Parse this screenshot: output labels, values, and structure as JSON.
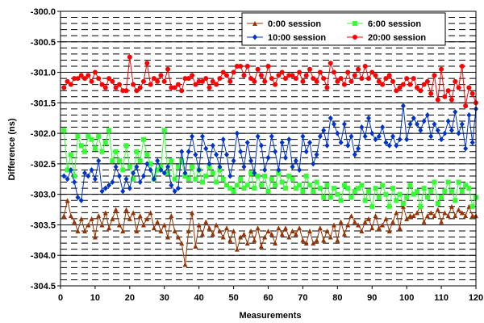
{
  "chart_data": {
    "type": "line",
    "title": "",
    "xlabel": "Measurements",
    "ylabel": "Difference (ns)",
    "xlim": [
      0,
      120
    ],
    "ylim": [
      -304.5,
      -300.0
    ],
    "x_ticks": [
      0,
      10,
      20,
      30,
      40,
      50,
      60,
      70,
      80,
      90,
      100,
      110,
      120
    ],
    "y_ticks": [
      -300.0,
      -300.5,
      -301.0,
      -301.5,
      -302.0,
      -302.5,
      -303.0,
      -303.5,
      -304.0,
      -304.5
    ],
    "y_tick_labels": [
      "-300.0",
      "-300.5",
      "-301.0",
      "-301.5",
      "-302.0",
      "-302.5",
      "-303.0",
      "-303.5",
      "-304.0",
      "-304.5"
    ],
    "grid": "dashed horizontal",
    "legend_placement": "top-right",
    "series": [
      {
        "name": "0:00 session",
        "color": "#993300",
        "marker": "triangle",
        "x_start": 1,
        "values": [
          -303.35,
          -303.1,
          -303.35,
          -303.45,
          -303.6,
          -303.4,
          -303.6,
          -303.5,
          -303.4,
          -303.7,
          -303.35,
          -303.5,
          -303.3,
          -303.55,
          -303.4,
          -303.25,
          -303.5,
          -303.6,
          -303.25,
          -303.4,
          -303.3,
          -303.6,
          -303.35,
          -303.5,
          -303.4,
          -303.3,
          -303.55,
          -303.45,
          -303.6,
          -303.5,
          -303.7,
          -303.35,
          -303.6,
          -303.7,
          -303.8,
          -304.15,
          -303.6,
          -303.3,
          -303.85,
          -303.5,
          -303.65,
          -303.45,
          -303.55,
          -303.65,
          -303.5,
          -303.6,
          -303.7,
          -303.55,
          -303.75,
          -303.6,
          -303.9,
          -303.7,
          -303.65,
          -303.8,
          -303.6,
          -303.75,
          -303.55,
          -303.85,
          -303.7,
          -303.6,
          -303.65,
          -303.8,
          -303.55,
          -303.65,
          -303.55,
          -303.7,
          -303.6,
          -303.65,
          -303.55,
          -303.75,
          -303.8,
          -303.6,
          -303.8,
          -303.75,
          -303.55,
          -303.75,
          -303.6,
          -303.7,
          -303.5,
          -303.75,
          -303.45,
          -303.65,
          -303.5,
          -303.35,
          -303.45,
          -303.5,
          -303.6,
          -303.45,
          -303.4,
          -303.55,
          -303.35,
          -303.55,
          -303.5,
          -303.4,
          -303.6,
          -303.45,
          -303.3,
          -303.55,
          -303.2,
          -303.4,
          -303.35,
          -303.35,
          -303.3,
          -303.2,
          -303.45,
          -303.35,
          -303.3,
          -303.35,
          -303.25,
          -303.45,
          -303.3,
          -303.35,
          -303.2,
          -303.35,
          -303.25,
          -303.3,
          -303.35,
          -303.2,
          -303.35,
          -303.35
        ]
      },
      {
        "name": "6:00 session",
        "color": "#33ff33",
        "marker": "square",
        "x_start": 1,
        "values": [
          -301.95,
          -302.6,
          -302.35,
          -302.7,
          -302.05,
          -302.2,
          -302.3,
          -302.05,
          -302.1,
          -302.25,
          -302.05,
          -302.3,
          -302.15,
          -301.95,
          -302.45,
          -302.3,
          -302.45,
          -302.6,
          -302.2,
          -302.55,
          -302.75,
          -302.3,
          -302.45,
          -302.1,
          -302.35,
          -302.5,
          -302.75,
          -302.6,
          -302.55,
          -301.95,
          -302.65,
          -302.45,
          -302.75,
          -302.55,
          -302.45,
          -302.7,
          -302.75,
          -302.55,
          -302.75,
          -302.6,
          -302.8,
          -302.7,
          -302.55,
          -302.65,
          -302.8,
          -302.6,
          -302.75,
          -302.85,
          -302.9,
          -302.95,
          -302.85,
          -302.75,
          -302.9,
          -302.85,
          -302.65,
          -302.9,
          -302.7,
          -302.85,
          -302.7,
          -302.95,
          -302.75,
          -302.85,
          -302.65,
          -302.8,
          -302.9,
          -302.7,
          -302.75,
          -302.9,
          -302.85,
          -302.95,
          -302.7,
          -302.85,
          -302.95,
          -302.8,
          -302.9,
          -303.05,
          -302.85,
          -303.05,
          -302.9,
          -303.0,
          -303.1,
          -302.85,
          -302.9,
          -303.05,
          -302.95,
          -302.9,
          -302.85,
          -303.1,
          -302.95,
          -303.2,
          -302.9,
          -303.05,
          -302.85,
          -303.0,
          -303.2,
          -302.9,
          -303.1,
          -303.0,
          -303.15,
          -303.05,
          -302.85,
          -303.0,
          -302.95,
          -303.2,
          -302.9,
          -303.05,
          -302.95,
          -302.8,
          -303.15,
          -303.05,
          -302.95,
          -302.8,
          -302.95,
          -303.1,
          -302.8,
          -302.95,
          -302.85,
          -302.9,
          -303.2,
          -303.05
        ]
      },
      {
        "name": "10:00 session",
        "color": "#0033cc",
        "marker": "diamond",
        "x_start": 1,
        "values": [
          -302.7,
          -302.75,
          -302.6,
          -302.8,
          -303.05,
          -303.1,
          -302.65,
          -302.7,
          -302.6,
          -302.75,
          -302.45,
          -302.95,
          -302.9,
          -302.85,
          -302.8,
          -302.55,
          -302.7,
          -302.95,
          -302.75,
          -302.9,
          -302.65,
          -302.55,
          -302.8,
          -302.7,
          -302.5,
          -302.6,
          -302.75,
          -302.45,
          -302.6,
          -302.65,
          -302.55,
          -302.85,
          -302.95,
          -302.9,
          -302.3,
          -302.65,
          -302.3,
          -302.05,
          -302.35,
          -302.6,
          -302.05,
          -302.25,
          -302.5,
          -302.2,
          -302.35,
          -302.55,
          -302.1,
          -302.35,
          -302.7,
          -302.45,
          -302.0,
          -302.3,
          -302.55,
          -302.15,
          -302.45,
          -302.65,
          -302.05,
          -302.2,
          -302.6,
          -302.4,
          -302.05,
          -302.3,
          -302.6,
          -302.15,
          -302.4,
          -302.1,
          -302.55,
          -302.45,
          -302.6,
          -302.05,
          -302.3,
          -302.15,
          -302.5,
          -302.35,
          -302.05,
          -301.95,
          -302.2,
          -301.75,
          -301.85,
          -302.0,
          -302.15,
          -301.85,
          -302.2,
          -302.05,
          -302.35,
          -302.25,
          -301.9,
          -302.05,
          -301.75,
          -302.0,
          -302.1,
          -302.05,
          -301.9,
          -302.15,
          -302.2,
          -302.05,
          -302.2,
          -302.1,
          -301.55,
          -302.1,
          -301.85,
          -301.75,
          -301.85,
          -301.95,
          -301.8,
          -301.7,
          -302.05,
          -301.85,
          -301.95,
          -302.1,
          -302.0,
          -301.8,
          -301.95,
          -301.65,
          -302.0,
          -301.85,
          -302.25,
          -301.7,
          -302.15,
          -301.6
        ]
      },
      {
        "name": "20:00 session",
        "color": "#ff0000",
        "marker": "circle",
        "x_start": 1,
        "values": [
          -301.25,
          -301.15,
          -301.2,
          -301.1,
          -301.1,
          -301.05,
          -301.1,
          -301.05,
          -301.15,
          -301.0,
          -301.1,
          -301.2,
          -301.25,
          -301.1,
          -301.15,
          -301.25,
          -301.2,
          -301.3,
          -301.3,
          -300.75,
          -301.2,
          -301.3,
          -301.25,
          -301.15,
          -300.85,
          -301.2,
          -301.1,
          -301.15,
          -301.05,
          -301.15,
          -300.95,
          -301.25,
          -301.25,
          -301.2,
          -301.3,
          -301.1,
          -301.1,
          -301.05,
          -301.2,
          -301.15,
          -301.15,
          -301.1,
          -301.25,
          -301.15,
          -301.2,
          -301.1,
          -301.0,
          -301.05,
          -301.15,
          -301.0,
          -300.9,
          -300.9,
          -301.05,
          -300.9,
          -301.1,
          -301.15,
          -300.95,
          -301.05,
          -301.15,
          -300.9,
          -301.1,
          -301.2,
          -301.05,
          -301.0,
          -301.1,
          -301.05,
          -301.05,
          -301.1,
          -301.0,
          -301.15,
          -301.05,
          -300.95,
          -301.1,
          -301.15,
          -301.0,
          -301.1,
          -301.25,
          -300.85,
          -301.0,
          -301.15,
          -301.1,
          -301.2,
          -301.0,
          -301.15,
          -301.05,
          -300.95,
          -301.1,
          -300.9,
          -301.1,
          -301.0,
          -301.05,
          -301.15,
          -301.2,
          -301.1,
          -301.05,
          -301.15,
          -301.3,
          -301.25,
          -301.2,
          -301.1,
          -301.2,
          -301.1,
          -301.25,
          -301.3,
          -301.2,
          -301.15,
          -301.35,
          -301.05,
          -301.45,
          -300.95,
          -301.4,
          -301.3,
          -301.45,
          -301.15,
          -301.25,
          -300.9,
          -301.55,
          -301.25,
          -301.35,
          -301.5
        ]
      }
    ]
  }
}
